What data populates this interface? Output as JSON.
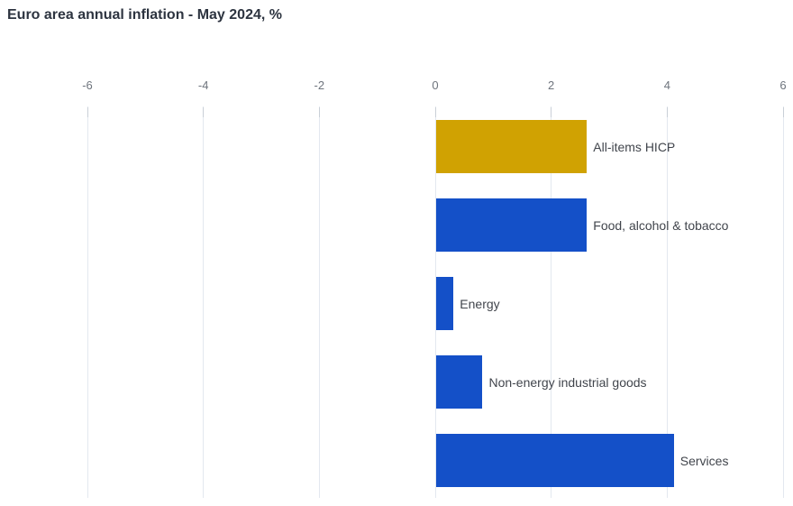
{
  "chart_data": {
    "type": "bar",
    "orientation": "horizontal",
    "title": "Euro area annual inflation - May 2024, %",
    "categories": [
      "All-items HICP",
      "Food, alcohol & tobacco",
      "Energy",
      "Non-energy industrial goods",
      "Services"
    ],
    "values": [
      2.6,
      2.6,
      0.3,
      0.8,
      4.1
    ],
    "unit": "%",
    "xlim": [
      -6,
      6
    ],
    "x_ticks": [
      -6,
      -4,
      -2,
      0,
      2,
      4,
      6
    ],
    "grid": "vertical",
    "legend": "none",
    "bar_colors": [
      "#d0a202",
      "#1450c8",
      "#1450c8",
      "#1450c8",
      "#1450c8"
    ],
    "colors": {
      "highlight_gold": "#d0a202",
      "primary_blue": "#1450c8",
      "gridline": "#e3e8ef",
      "tick_mark": "#c9cfd7",
      "axis_label": "#6e747d",
      "bar_label": "#41454c",
      "title": "#2d3440",
      "background": "#ffffff"
    }
  }
}
